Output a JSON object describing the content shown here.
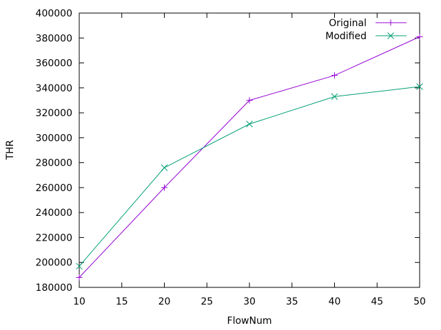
{
  "chart_data": {
    "type": "line",
    "title": "",
    "xlabel": "FlowNum",
    "ylabel": "THR",
    "xlim": [
      10,
      50
    ],
    "ylim": [
      180000,
      400000
    ],
    "xticks": [
      10,
      15,
      20,
      25,
      30,
      35,
      40,
      45,
      50
    ],
    "yticks": [
      180000,
      200000,
      220000,
      240000,
      260000,
      280000,
      300000,
      320000,
      340000,
      360000,
      380000,
      400000
    ],
    "x": [
      10,
      20,
      30,
      40,
      50
    ],
    "grid": false,
    "legend_position": "top-right",
    "series": [
      {
        "name": "Original",
        "values": [
          188000,
          260000,
          330000,
          350000,
          381000
        ],
        "color": "#9400d3",
        "marker": "plus"
      },
      {
        "name": "Modified",
        "values": [
          197000,
          276000,
          311000,
          333000,
          341000
        ],
        "color": "#009e73",
        "marker": "cross"
      }
    ]
  }
}
